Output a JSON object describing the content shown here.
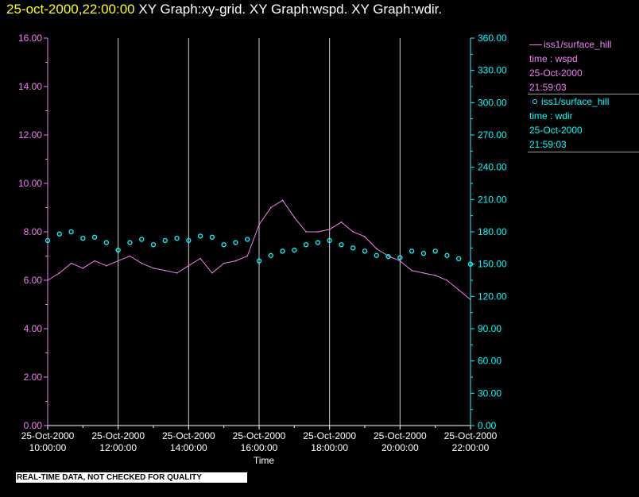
{
  "header": {
    "timestamp": "25-oct-2000,22:00:00",
    "titles": [
      "XY Graph:xy-grid.",
      "XY Graph:wspd.",
      "XY Graph:wdir."
    ]
  },
  "banner": "REAL-TIME DATA, NOT CHECKED FOR QUALITY",
  "colors": {
    "wspd": "#ee82ee",
    "wdir": "#00ffff",
    "grid": "#cccccc",
    "background": "#000000"
  },
  "legend": [
    {
      "marker": "line",
      "lines": [
        "iss1/surface_hill",
        "time : wspd",
        "25-Oct-2000",
        "21:59:03"
      ]
    },
    {
      "marker": "circle",
      "lines": [
        "iss1/surface_hill",
        "time : wdir",
        "25-Oct-2000",
        "21:59:03"
      ]
    }
  ],
  "chart_data": {
    "type": "line",
    "xlabel": "Time",
    "x_ticks": [
      [
        "25-Oct-2000",
        "10:00:00"
      ],
      [
        "25-Oct-2000",
        "12:00:00"
      ],
      [
        "25-Oct-2000",
        "14:00:00"
      ],
      [
        "25-Oct-2000",
        "16:00:00"
      ],
      [
        "25-Oct-2000",
        "18:00:00"
      ],
      [
        "25-Oct-2000",
        "20:00:00"
      ],
      [
        "25-Oct-2000",
        "22:00:00"
      ]
    ],
    "xlim": [
      "2000-10-25T10:00:00",
      "2000-10-25T22:00:00"
    ],
    "left_axis": {
      "ylim": [
        0,
        16
      ],
      "ticks": [
        "0.00",
        "2.00",
        "4.00",
        "6.00",
        "8.00",
        "10.00",
        "12.00",
        "14.00",
        "16.00"
      ]
    },
    "right_axis": {
      "ylim": [
        0,
        360
      ],
      "ticks": [
        "0.00",
        "30.00",
        "60.00",
        "90.00",
        "120.00",
        "150.00",
        "180.00",
        "210.00",
        "240.00",
        "270.00",
        "300.00",
        "330.00",
        "360.00"
      ]
    },
    "grid": "vertical lines at each x tick",
    "series": [
      {
        "name": "iss1/surface_hill time : wspd",
        "style": "line",
        "axis": "left",
        "x": [
          "10:00",
          "10:20",
          "10:40",
          "11:00",
          "11:20",
          "11:40",
          "12:00",
          "12:20",
          "12:40",
          "13:00",
          "13:20",
          "13:40",
          "14:00",
          "14:20",
          "14:40",
          "15:00",
          "15:20",
          "15:40",
          "16:00",
          "16:20",
          "16:40",
          "17:00",
          "17:20",
          "17:40",
          "18:00",
          "18:20",
          "18:40",
          "19:00",
          "19:20",
          "19:40",
          "20:00",
          "20:20",
          "20:40",
          "21:00",
          "21:20",
          "21:40",
          "22:00"
        ],
        "y": [
          6.0,
          6.3,
          6.7,
          6.5,
          6.8,
          6.6,
          6.8,
          7.0,
          6.7,
          6.5,
          6.4,
          6.3,
          6.6,
          6.9,
          6.3,
          6.7,
          6.8,
          7.0,
          8.3,
          9.0,
          9.3,
          8.6,
          8.0,
          8.0,
          8.1,
          8.4,
          8.0,
          7.8,
          7.3,
          7.0,
          6.8,
          6.4,
          6.3,
          6.2,
          6.0,
          5.6,
          5.2
        ]
      },
      {
        "name": "iss1/surface_hill time : wdir",
        "style": "circle",
        "axis": "right",
        "x": [
          "10:00",
          "10:20",
          "10:40",
          "11:00",
          "11:20",
          "11:40",
          "12:00",
          "12:20",
          "12:40",
          "13:00",
          "13:20",
          "13:40",
          "14:00",
          "14:20",
          "14:40",
          "15:00",
          "15:20",
          "15:40",
          "16:00",
          "16:20",
          "16:40",
          "17:00",
          "17:20",
          "17:40",
          "18:00",
          "18:20",
          "18:40",
          "19:00",
          "19:20",
          "19:40",
          "20:00",
          "20:20",
          "20:40",
          "21:00",
          "21:20",
          "21:40",
          "22:00"
        ],
        "y": [
          172,
          178,
          180,
          174,
          175,
          170,
          163,
          170,
          173,
          168,
          172,
          174,
          172,
          176,
          175,
          168,
          170,
          173,
          153,
          158,
          162,
          163,
          168,
          170,
          172,
          168,
          165,
          162,
          158,
          157,
          156,
          162,
          160,
          162,
          158,
          155,
          150
        ]
      }
    ]
  }
}
